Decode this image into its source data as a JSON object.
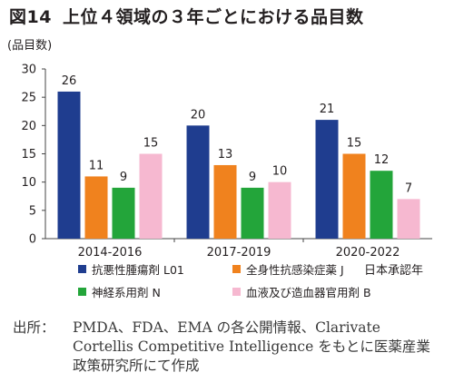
{
  "figure": {
    "label": "図14",
    "title": "上位４領域の３年ごとにおける品目数"
  },
  "chart_data": {
    "type": "bar",
    "title": "図14　上位４領域の３年ごとにおける品目数",
    "ylabel": "(品目数)",
    "xlabel": "",
    "ylim": [
      0,
      30
    ],
    "yticks": [
      0,
      5,
      10,
      15,
      20,
      25,
      30
    ],
    "grid": false,
    "categories": [
      "2014-2016",
      "2017-2019",
      "2020-2022"
    ],
    "series": [
      {
        "name": "抗悪性腫瘍剤 L01",
        "color": "#1f3d8f",
        "values": [
          26,
          20,
          21
        ]
      },
      {
        "name": "全身性抗感染症薬 J",
        "color": "#f0821e",
        "values": [
          11,
          13,
          15
        ]
      },
      {
        "name": "神経系用剤 N",
        "color": "#23a53a",
        "values": [
          9,
          9,
          12
        ]
      },
      {
        "name": "血液及び造血器官用剤 B",
        "color": "#f6b8d0",
        "values": [
          15,
          10,
          7
        ]
      }
    ],
    "legend_position": "bottom",
    "annotation": "日本承認年"
  },
  "source": {
    "label": "出所：",
    "text": "PMDA、FDA、EMA の各公開情報、Clarivate Cortellis Competitive Intelligence をもとに医薬産業政策研究所にて作成"
  }
}
